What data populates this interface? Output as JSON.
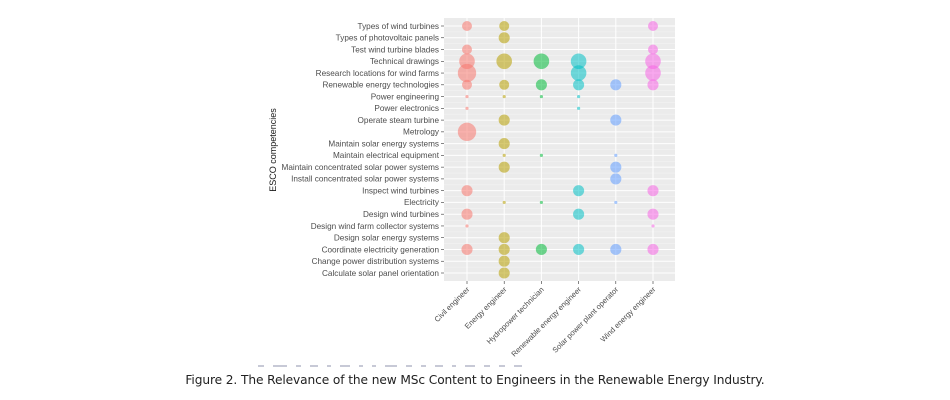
{
  "figure": {
    "caption": "Figure 2. The Relevance of the new MSc Content to Engineers in the Renewable Energy Industry."
  },
  "chart_data": {
    "type": "scatter",
    "subtype": "bubble",
    "title": "",
    "xlabel": "",
    "ylabel": "ESCO competencies",
    "grid": true,
    "legend": "none",
    "size_scale_note": "relative bubble size estimated on 0-3 scale",
    "x_categories": [
      "Civil engineer",
      "Energy engineer",
      "Hydropower technician",
      "Renewable energy engineer",
      "Solar power plant operator",
      "Wind energy engineer"
    ],
    "series_colors": {
      "Civil engineer": "#F8766D",
      "Energy engineer": "#B79F00",
      "Hydropower technician": "#00BA38",
      "Renewable energy engineer": "#00BFC4",
      "Solar power plant operator": "#619CFF",
      "Wind energy engineer": "#F564E3"
    },
    "y_categories": [
      "Types of wind turbines",
      "Types of photovoltaic panels",
      "Test wind turbine blades",
      "Technical drawings",
      "Research locations for wind farms",
      "Renewable energy technologies",
      "Power engineering",
      "Power electronics",
      "Operate steam turbine",
      "Metrology",
      "Maintain solar energy systems",
      "Maintain electrical equipment",
      "Maintain concentrated solar power systems",
      "Install concentrated solar power systems",
      "Inspect wind turbines",
      "Electricity",
      "Design wind turbines",
      "Design wind farm collector systems",
      "Design solar energy systems",
      "Coordinate electricity generation",
      "Change power distribution systems",
      "Calculate solar panel orientation"
    ],
    "points": [
      {
        "x": "Civil engineer",
        "y": "Types of wind turbines",
        "size": 1
      },
      {
        "x": "Civil engineer",
        "y": "Test wind turbine blades",
        "size": 1
      },
      {
        "x": "Civil engineer",
        "y": "Technical drawings",
        "size": 2
      },
      {
        "x": "Civil engineer",
        "y": "Research locations for wind farms",
        "size": 2.5
      },
      {
        "x": "Civil engineer",
        "y": "Renewable energy technologies",
        "size": 1
      },
      {
        "x": "Civil engineer",
        "y": "Power engineering",
        "size": 0.3
      },
      {
        "x": "Civil engineer",
        "y": "Power electronics",
        "size": 0.3
      },
      {
        "x": "Civil engineer",
        "y": "Metrology",
        "size": 2.5
      },
      {
        "x": "Civil engineer",
        "y": "Inspect wind turbines",
        "size": 1.2
      },
      {
        "x": "Civil engineer",
        "y": "Design wind turbines",
        "size": 1.2
      },
      {
        "x": "Civil engineer",
        "y": "Design wind farm collector systems",
        "size": 0.3
      },
      {
        "x": "Civil engineer",
        "y": "Coordinate electricity generation",
        "size": 1.2
      },
      {
        "x": "Energy engineer",
        "y": "Types of wind turbines",
        "size": 1
      },
      {
        "x": "Energy engineer",
        "y": "Types of photovoltaic panels",
        "size": 1.2
      },
      {
        "x": "Energy engineer",
        "y": "Technical drawings",
        "size": 2
      },
      {
        "x": "Energy engineer",
        "y": "Renewable energy technologies",
        "size": 1
      },
      {
        "x": "Energy engineer",
        "y": "Power engineering",
        "size": 0.3
      },
      {
        "x": "Energy engineer",
        "y": "Operate steam turbine",
        "size": 1.2
      },
      {
        "x": "Energy engineer",
        "y": "Maintain solar energy systems",
        "size": 1.2
      },
      {
        "x": "Energy engineer",
        "y": "Maintain electrical equipment",
        "size": 0.3
      },
      {
        "x": "Energy engineer",
        "y": "Maintain concentrated solar power systems",
        "size": 1.2
      },
      {
        "x": "Energy engineer",
        "y": "Electricity",
        "size": 0.3
      },
      {
        "x": "Energy engineer",
        "y": "Design solar energy systems",
        "size": 1.2
      },
      {
        "x": "Energy engineer",
        "y": "Coordinate electricity generation",
        "size": 1.2
      },
      {
        "x": "Energy engineer",
        "y": "Change power distribution systems",
        "size": 1.2
      },
      {
        "x": "Energy engineer",
        "y": "Calculate solar panel orientation",
        "size": 1.2
      },
      {
        "x": "Hydropower technician",
        "y": "Technical drawings",
        "size": 2
      },
      {
        "x": "Hydropower technician",
        "y": "Renewable energy technologies",
        "size": 1.2
      },
      {
        "x": "Hydropower technician",
        "y": "Power engineering",
        "size": 0.3
      },
      {
        "x": "Hydropower technician",
        "y": "Maintain electrical equipment",
        "size": 0.3
      },
      {
        "x": "Hydropower technician",
        "y": "Electricity",
        "size": 0.3
      },
      {
        "x": "Hydropower technician",
        "y": "Coordinate electricity generation",
        "size": 1.2
      },
      {
        "x": "Renewable energy engineer",
        "y": "Technical drawings",
        "size": 2
      },
      {
        "x": "Renewable energy engineer",
        "y": "Research locations for wind farms",
        "size": 2
      },
      {
        "x": "Renewable energy engineer",
        "y": "Renewable energy technologies",
        "size": 1.2
      },
      {
        "x": "Renewable energy engineer",
        "y": "Power engineering",
        "size": 0.3
      },
      {
        "x": "Renewable energy engineer",
        "y": "Power electronics",
        "size": 0.3
      },
      {
        "x": "Renewable energy engineer",
        "y": "Inspect wind turbines",
        "size": 1.2
      },
      {
        "x": "Renewable energy engineer",
        "y": "Design wind turbines",
        "size": 1.2
      },
      {
        "x": "Renewable energy engineer",
        "y": "Coordinate electricity generation",
        "size": 1.2
      },
      {
        "x": "Solar power plant operator",
        "y": "Renewable energy technologies",
        "size": 1.2
      },
      {
        "x": "Solar power plant operator",
        "y": "Operate steam turbine",
        "size": 1.2
      },
      {
        "x": "Solar power plant operator",
        "y": "Maintain electrical equipment",
        "size": 0.3
      },
      {
        "x": "Solar power plant operator",
        "y": "Maintain concentrated solar power systems",
        "size": 1.2
      },
      {
        "x": "Solar power plant operator",
        "y": "Install concentrated solar power systems",
        "size": 1.2
      },
      {
        "x": "Solar power plant operator",
        "y": "Electricity",
        "size": 0.3
      },
      {
        "x": "Solar power plant operator",
        "y": "Coordinate electricity generation",
        "size": 1.2
      },
      {
        "x": "Wind energy engineer",
        "y": "Types of wind turbines",
        "size": 1
      },
      {
        "x": "Wind energy engineer",
        "y": "Test wind turbine blades",
        "size": 1
      },
      {
        "x": "Wind energy engineer",
        "y": "Technical drawings",
        "size": 2
      },
      {
        "x": "Wind energy engineer",
        "y": "Research locations for wind farms",
        "size": 2
      },
      {
        "x": "Wind energy engineer",
        "y": "Renewable energy technologies",
        "size": 1.2
      },
      {
        "x": "Wind energy engineer",
        "y": "Inspect wind turbines",
        "size": 1.2
      },
      {
        "x": "Wind energy engineer",
        "y": "Design wind turbines",
        "size": 1.2
      },
      {
        "x": "Wind energy engineer",
        "y": "Design wind farm collector systems",
        "size": 0.3
      },
      {
        "x": "Wind energy engineer",
        "y": "Coordinate electricity generation",
        "size": 1.2
      }
    ]
  }
}
